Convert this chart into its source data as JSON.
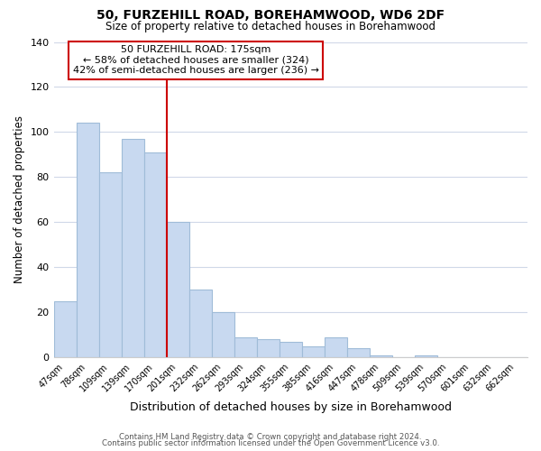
{
  "title": "50, FURZEHILL ROAD, BOREHAMWOOD, WD6 2DF",
  "subtitle": "Size of property relative to detached houses in Borehamwood",
  "xlabel": "Distribution of detached houses by size in Borehamwood",
  "ylabel": "Number of detached properties",
  "bar_labels": [
    "47sqm",
    "78sqm",
    "109sqm",
    "139sqm",
    "170sqm",
    "201sqm",
    "232sqm",
    "262sqm",
    "293sqm",
    "324sqm",
    "355sqm",
    "385sqm",
    "416sqm",
    "447sqm",
    "478sqm",
    "509sqm",
    "539sqm",
    "570sqm",
    "601sqm",
    "632sqm",
    "662sqm"
  ],
  "bar_values": [
    25,
    104,
    82,
    97,
    91,
    60,
    30,
    20,
    9,
    8,
    7,
    5,
    9,
    4,
    1,
    0,
    1,
    0,
    0,
    0,
    0
  ],
  "bar_color": "#c8d9f0",
  "bar_edge_color": "#a0bcd8",
  "reference_line_color": "#cc0000",
  "annotation_title": "50 FURZEHILL ROAD: 175sqm",
  "annotation_line1": "← 58% of detached houses are smaller (324)",
  "annotation_line2": "42% of semi-detached houses are larger (236) →",
  "annotation_box_color": "#ffffff",
  "annotation_box_edge_color": "#cc0000",
  "ylim": [
    0,
    140
  ],
  "yticks": [
    0,
    20,
    40,
    60,
    80,
    100,
    120,
    140
  ],
  "footer_line1": "Contains HM Land Registry data © Crown copyright and database right 2024.",
  "footer_line2": "Contains public sector information licensed under the Open Government Licence v3.0.",
  "background_color": "#ffffff",
  "grid_color": "#d0d8e8"
}
